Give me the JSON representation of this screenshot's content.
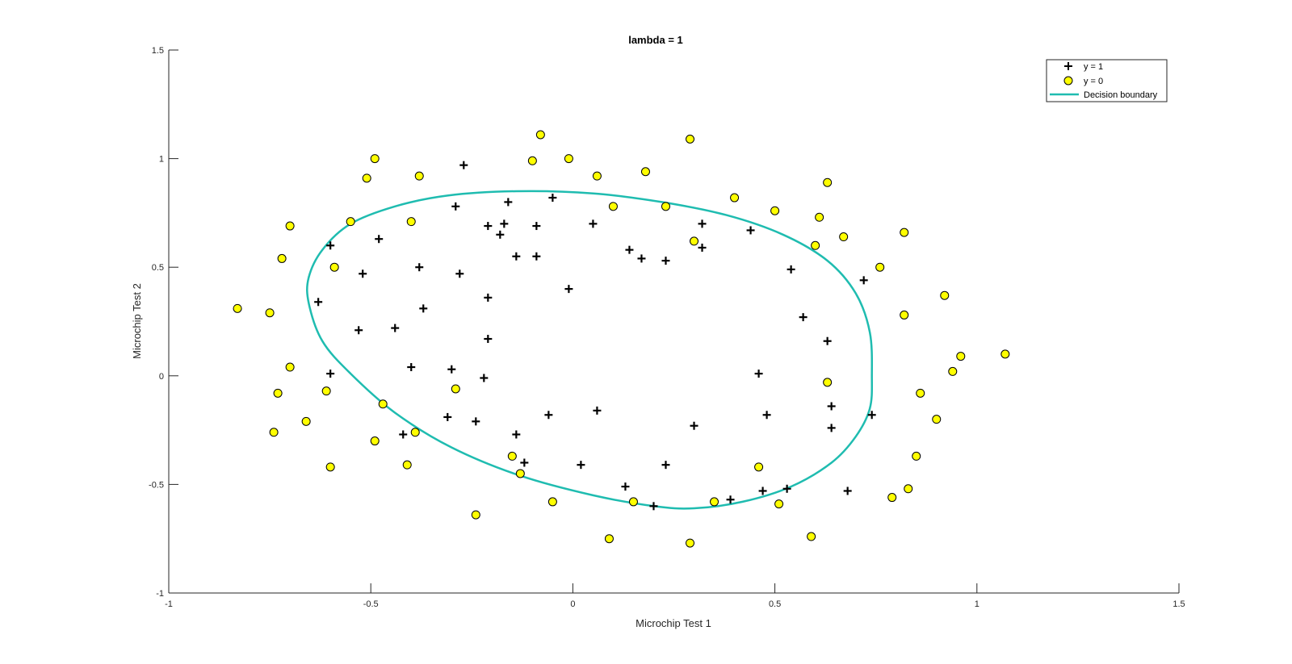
{
  "chart_data": {
    "type": "scatter",
    "title": "lambda = 1",
    "xlabel": "Microchip Test 1",
    "ylabel": "Microchip Test 2",
    "xlim": [
      -1,
      1.5
    ],
    "ylim": [
      -1,
      1.5
    ],
    "xticks": [
      "-1",
      "-0.5",
      "0",
      "0.5",
      "1",
      "1.5"
    ],
    "yticks": [
      "-1",
      "-0.5",
      "0",
      "0.5",
      "1",
      "1.5"
    ],
    "grid": false,
    "legend_position": "top-right",
    "colors": {
      "positive": "#000000",
      "negative_fill": "#ffff00",
      "negative_edge": "#000000",
      "boundary": "#1fbcb0"
    },
    "series": [
      {
        "name": "y = 1",
        "marker": "plus",
        "points": [
          [
            -0.27,
            0.97
          ],
          [
            -0.29,
            0.78
          ],
          [
            -0.21,
            0.69
          ],
          [
            -0.16,
            0.8
          ],
          [
            -0.05,
            0.82
          ],
          [
            -0.17,
            0.7
          ],
          [
            -0.18,
            0.65
          ],
          [
            -0.09,
            0.69
          ],
          [
            0.05,
            0.7
          ],
          [
            -0.6,
            0.6
          ],
          [
            -0.48,
            0.63
          ],
          [
            -0.52,
            0.47
          ],
          [
            -0.38,
            0.5
          ],
          [
            -0.28,
            0.47
          ],
          [
            -0.14,
            0.55
          ],
          [
            -0.09,
            0.55
          ],
          [
            0.14,
            0.58
          ],
          [
            0.17,
            0.54
          ],
          [
            0.23,
            0.53
          ],
          [
            0.32,
            0.7
          ],
          [
            0.32,
            0.59
          ],
          [
            0.44,
            0.67
          ],
          [
            0.54,
            0.49
          ],
          [
            0.72,
            0.44
          ],
          [
            -0.63,
            0.34
          ],
          [
            -0.37,
            0.31
          ],
          [
            -0.21,
            0.36
          ],
          [
            -0.01,
            0.4
          ],
          [
            -0.53,
            0.21
          ],
          [
            -0.44,
            0.22
          ],
          [
            -0.21,
            0.17
          ],
          [
            0.57,
            0.27
          ],
          [
            0.63,
            0.16
          ],
          [
            -0.6,
            0.01
          ],
          [
            -0.4,
            0.04
          ],
          [
            -0.3,
            0.03
          ],
          [
            -0.22,
            -0.01
          ],
          [
            0.46,
            0.01
          ],
          [
            -0.31,
            -0.19
          ],
          [
            -0.24,
            -0.21
          ],
          [
            -0.14,
            -0.27
          ],
          [
            -0.06,
            -0.18
          ],
          [
            0.06,
            -0.16
          ],
          [
            0.3,
            -0.23
          ],
          [
            0.48,
            -0.18
          ],
          [
            0.64,
            -0.14
          ],
          [
            0.64,
            -0.24
          ],
          [
            0.74,
            -0.18
          ],
          [
            -0.42,
            -0.27
          ],
          [
            -0.12,
            -0.4
          ],
          [
            0.02,
            -0.41
          ],
          [
            0.23,
            -0.41
          ],
          [
            0.13,
            -0.51
          ],
          [
            0.2,
            -0.6
          ],
          [
            0.39,
            -0.57
          ],
          [
            0.47,
            -0.53
          ],
          [
            0.53,
            -0.52
          ],
          [
            0.68,
            -0.53
          ]
        ]
      },
      {
        "name": "y = 0",
        "marker": "circle",
        "points": [
          [
            -0.08,
            1.11
          ],
          [
            -0.1,
            0.99
          ],
          [
            -0.01,
            1.0
          ],
          [
            0.29,
            1.09
          ],
          [
            -0.49,
            1.0
          ],
          [
            -0.51,
            0.91
          ],
          [
            -0.38,
            0.92
          ],
          [
            0.06,
            0.92
          ],
          [
            0.18,
            0.94
          ],
          [
            0.63,
            0.89
          ],
          [
            0.4,
            0.82
          ],
          [
            0.1,
            0.78
          ],
          [
            0.23,
            0.78
          ],
          [
            -0.7,
            0.69
          ],
          [
            -0.55,
            0.71
          ],
          [
            -0.4,
            0.71
          ],
          [
            0.5,
            0.76
          ],
          [
            0.61,
            0.73
          ],
          [
            0.82,
            0.66
          ],
          [
            0.67,
            0.64
          ],
          [
            0.3,
            0.62
          ],
          [
            0.6,
            0.6
          ],
          [
            -0.72,
            0.54
          ],
          [
            -0.59,
            0.5
          ],
          [
            0.76,
            0.5
          ],
          [
            -0.83,
            0.31
          ],
          [
            -0.75,
            0.29
          ],
          [
            0.92,
            0.37
          ],
          [
            0.82,
            0.28
          ],
          [
            -0.7,
            0.04
          ],
          [
            -0.29,
            -0.06
          ],
          [
            0.96,
            0.09
          ],
          [
            0.94,
            0.02
          ],
          [
            1.07,
            0.1
          ],
          [
            -0.73,
            -0.08
          ],
          [
            -0.61,
            -0.07
          ],
          [
            -0.47,
            -0.13
          ],
          [
            0.63,
            -0.03
          ],
          [
            0.86,
            -0.08
          ],
          [
            -0.74,
            -0.26
          ],
          [
            -0.66,
            -0.21
          ],
          [
            -0.39,
            -0.26
          ],
          [
            -0.49,
            -0.3
          ],
          [
            0.9,
            -0.2
          ],
          [
            0.85,
            -0.37
          ],
          [
            -0.15,
            -0.37
          ],
          [
            -0.6,
            -0.42
          ],
          [
            -0.41,
            -0.41
          ],
          [
            -0.13,
            -0.45
          ],
          [
            0.46,
            -0.42
          ],
          [
            -0.05,
            -0.58
          ],
          [
            0.15,
            -0.58
          ],
          [
            0.35,
            -0.58
          ],
          [
            0.51,
            -0.59
          ],
          [
            0.79,
            -0.56
          ],
          [
            0.83,
            -0.52
          ],
          [
            -0.24,
            -0.64
          ],
          [
            0.09,
            -0.75
          ],
          [
            0.29,
            -0.77
          ],
          [
            0.59,
            -0.74
          ]
        ]
      },
      {
        "name": "Decision boundary",
        "type": "line",
        "points": [
          [
            0.74,
            0.0
          ],
          [
            0.735,
            0.2
          ],
          [
            0.7,
            0.38
          ],
          [
            0.63,
            0.53
          ],
          [
            0.52,
            0.65
          ],
          [
            0.38,
            0.74
          ],
          [
            0.22,
            0.8
          ],
          [
            0.05,
            0.84
          ],
          [
            -0.14,
            0.85
          ],
          [
            -0.31,
            0.83
          ],
          [
            -0.44,
            0.78
          ],
          [
            -0.55,
            0.7
          ],
          [
            -0.62,
            0.58
          ],
          [
            -0.654,
            0.45
          ],
          [
            -0.653,
            0.33
          ],
          [
            -0.62,
            0.16
          ],
          [
            -0.55,
            0.01
          ],
          [
            -0.44,
            -0.17
          ],
          [
            -0.3,
            -0.33
          ],
          [
            -0.13,
            -0.46
          ],
          [
            0.05,
            -0.55
          ],
          [
            0.2,
            -0.6
          ],
          [
            0.3,
            -0.61
          ],
          [
            0.42,
            -0.58
          ],
          [
            0.54,
            -0.51
          ],
          [
            0.64,
            -0.4
          ],
          [
            0.7,
            -0.28
          ],
          [
            0.735,
            -0.15
          ],
          [
            0.74,
            0.0
          ]
        ]
      }
    ]
  }
}
